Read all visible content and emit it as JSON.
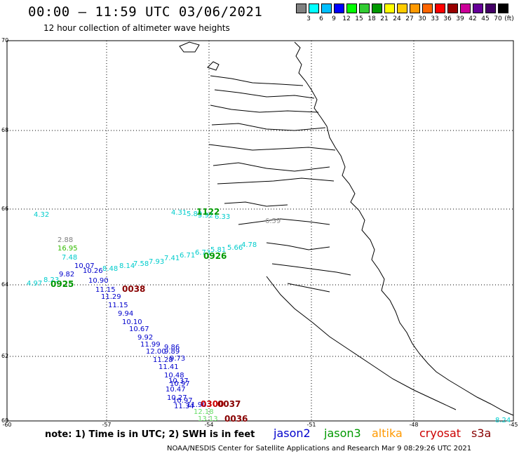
{
  "title": "00:00 – 11:59 UTC 03/06/2021",
  "subtitle": "12 hour collection of altimeter wave heights",
  "color_scale": {
    "unit": "(ft)",
    "colors": [
      "#808080",
      "#00ffff",
      "#00bfff",
      "#0000ff",
      "#00ff00",
      "#33cc33",
      "#009900",
      "#ffff00",
      "#ffcc00",
      "#ff9900",
      "#ff6600",
      "#ff0000",
      "#990000",
      "#cc0099",
      "#660099",
      "#440066",
      "#000000"
    ],
    "labels": [
      "3",
      "6",
      "9",
      "12",
      "15",
      "18",
      "21",
      "24",
      "27",
      "30",
      "33",
      "36",
      "39",
      "42",
      "45",
      "70"
    ]
  },
  "axes": {
    "lat_labels": [
      "70",
      "68",
      "66",
      "64",
      "62",
      "60"
    ],
    "lon_labels": [
      "-60",
      "-57",
      "-54",
      "-51",
      "-48",
      "-45"
    ]
  },
  "observations": [
    {
      "text": "4.32",
      "color": "#00cccc"
    },
    {
      "text": "4.31",
      "color": "#00cccc"
    },
    {
      "text": "5.89",
      "color": "#00cccc"
    },
    {
      "text": "5.92",
      "color": "#00cccc"
    },
    {
      "text": "6.33",
      "color": "#00cccc"
    },
    {
      "text": "1122",
      "color": "#009900",
      "bold": true
    },
    {
      "text": "6.59",
      "color": "#909090"
    },
    {
      "text": "2.88",
      "color": "#808080"
    },
    {
      "text": "16.95",
      "color": "#33bb00"
    },
    {
      "text": "7.48",
      "color": "#00cccc"
    },
    {
      "text": "10.07",
      "color": "#0000cc"
    },
    {
      "text": "10.26",
      "color": "#0000cc"
    },
    {
      "text": "8.48",
      "color": "#00cccc"
    },
    {
      "text": "8.14",
      "color": "#00cccc"
    },
    {
      "text": "7.58",
      "color": "#00cccc"
    },
    {
      "text": "7.93",
      "color": "#00cccc"
    },
    {
      "text": "7.41",
      "color": "#00cccc"
    },
    {
      "text": "6.71",
      "color": "#00cccc"
    },
    {
      "text": "6.73",
      "color": "#00cccc"
    },
    {
      "text": "5.81",
      "color": "#00cccc"
    },
    {
      "text": "5.66",
      "color": "#00cccc"
    },
    {
      "text": "4.78",
      "color": "#00cccc"
    },
    {
      "text": "0926",
      "color": "#009900",
      "bold": true
    },
    {
      "text": "4.97",
      "color": "#00cccc"
    },
    {
      "text": "8.23",
      "color": "#00cccc"
    },
    {
      "text": "9.82",
      "color": "#0000cc"
    },
    {
      "text": "0925",
      "color": "#009900",
      "bold": true
    },
    {
      "text": "10.90",
      "color": "#0000cc"
    },
    {
      "text": "11.15",
      "color": "#0000cc"
    },
    {
      "text": "0038",
      "color": "#880000",
      "bold": true
    },
    {
      "text": "11.29",
      "color": "#0000cc"
    },
    {
      "text": "11.15",
      "color": "#0000cc"
    },
    {
      "text": "9.94",
      "color": "#0000cc"
    },
    {
      "text": "10.10",
      "color": "#0000cc"
    },
    {
      "text": "10.67",
      "color": "#0000cc"
    },
    {
      "text": "9.92",
      "color": "#0000cc"
    },
    {
      "text": "11.99",
      "color": "#0000cc"
    },
    {
      "text": "9.86",
      "color": "#0000cc"
    },
    {
      "text": "12.00",
      "color": "#0000cc"
    },
    {
      "text": "9.89",
      "color": "#0000cc"
    },
    {
      "text": "11.28",
      "color": "#0000cc"
    },
    {
      "text": "9.73",
      "color": "#0000cc"
    },
    {
      "text": "11.41",
      "color": "#0000cc"
    },
    {
      "text": "10.48",
      "color": "#0000cc"
    },
    {
      "text": "10.37",
      "color": "#0000cc"
    },
    {
      "text": "10.97",
      "color": "#0000cc"
    },
    {
      "text": "10.47",
      "color": "#0000cc"
    },
    {
      "text": "10.27",
      "color": "#0000cc"
    },
    {
      "text": "10.97",
      "color": "#0000cc"
    },
    {
      "text": "11.34",
      "color": "#0000cc"
    },
    {
      "text": "11.90",
      "color": "#0000cc"
    },
    {
      "text": "0300",
      "color": "#cc0000",
      "bold": true
    },
    {
      "text": "0037",
      "color": "#880000",
      "bold": true
    },
    {
      "text": "12.18",
      "color": "#66dd66"
    },
    {
      "text": "13.13",
      "color": "#66dd66"
    },
    {
      "text": "0036",
      "color": "#880000",
      "bold": true
    },
    {
      "text": "8.24",
      "color": "#00cccc"
    }
  ],
  "note": "note:  1) Time is in UTC;  2) SWH is in feet",
  "legend": [
    {
      "name": "jason2",
      "color": "#0000cc"
    },
    {
      "name": "jason3",
      "color": "#009900"
    },
    {
      "name": "altika",
      "color": "#ff9900"
    },
    {
      "name": "cryosat",
      "color": "#cc0000"
    },
    {
      "name": "s3a",
      "color": "#880000"
    }
  ],
  "footer": "NOAA/NESDIS Center for Satellite Applications and Research    Mar  9 08:29:26 UTC 2021"
}
